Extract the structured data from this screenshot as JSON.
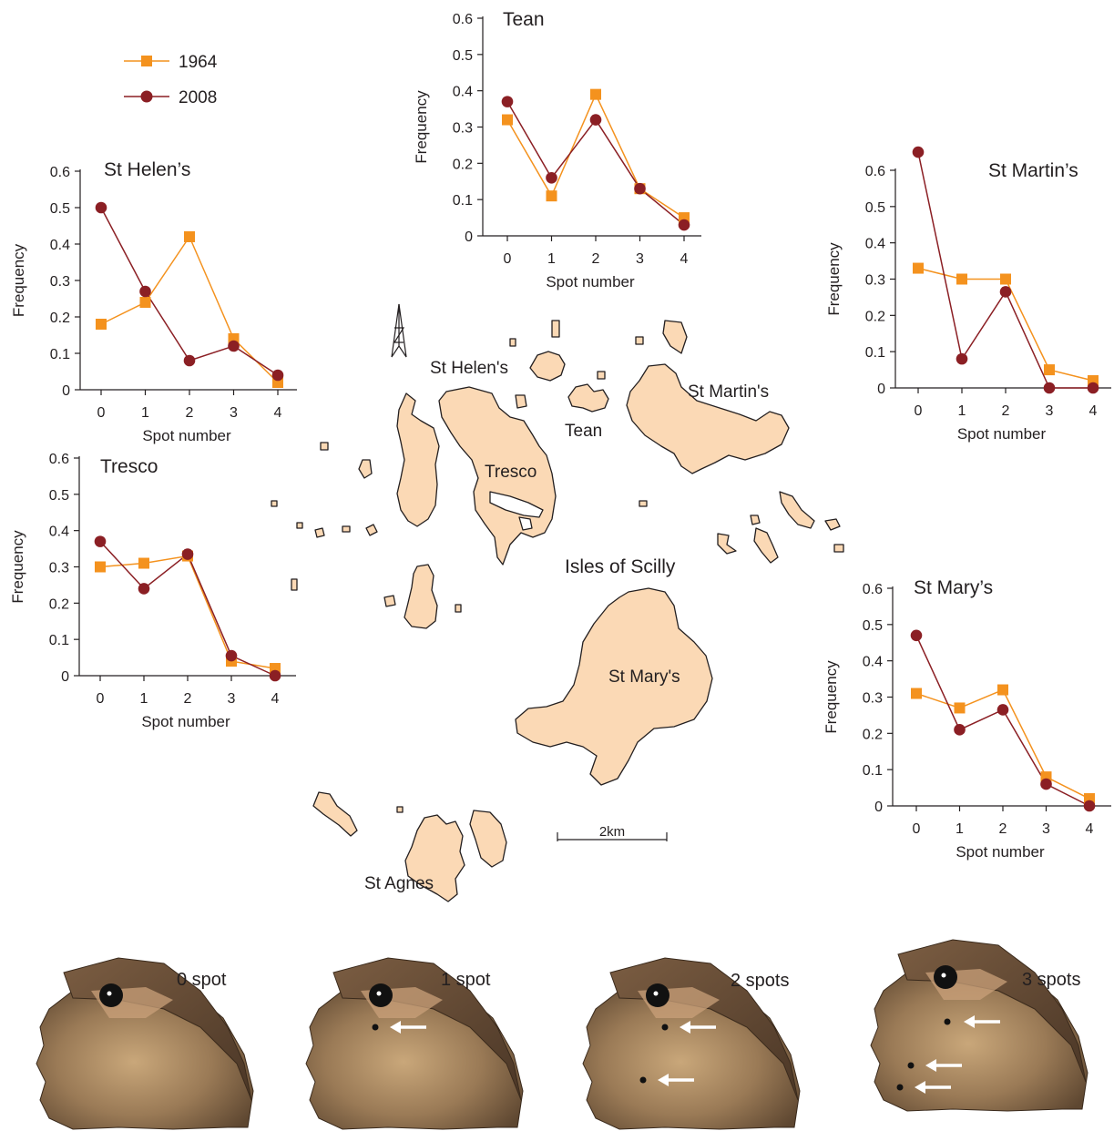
{
  "colors": {
    "series_1964": "#f4921e",
    "series_2008": "#8b1f24",
    "land": "#fbd9b5",
    "coast": "#231f20",
    "axis": "#231f20"
  },
  "legend": {
    "entries": [
      {
        "label": "1964",
        "marker": "square",
        "color": "#f4921e"
      },
      {
        "label": "2008",
        "marker": "circle",
        "color": "#8b1f24"
      }
    ]
  },
  "map": {
    "labels": {
      "st_helens": "St Helen's",
      "st_martins": "St Martin's",
      "tean": "Tean",
      "tresco": "Tresco",
      "isles": "Isles of Scilly",
      "st_marys": "St Mary's",
      "st_agnes": "St Agnes"
    },
    "scale_label": "2km",
    "north_arrow_icon": "north-arrow-icon"
  },
  "specimens": [
    {
      "label": "0 spot",
      "spots": 0
    },
    {
      "label": "1 spot",
      "spots": 1
    },
    {
      "label": "2 spots",
      "spots": 2
    },
    {
      "label": "3 spots",
      "spots": 3
    }
  ],
  "chart_data": [
    {
      "type": "line",
      "title": "Tean",
      "xlabel": "Spot number",
      "ylabel": "Frequency",
      "x": [
        0,
        1,
        2,
        3,
        4
      ],
      "ylim": [
        0,
        0.6
      ],
      "yticks": [
        "0",
        "0.1",
        "0.2",
        "0.3",
        "0.4",
        "0.5",
        "0.6"
      ],
      "xticks": [
        "0",
        "1",
        "2",
        "3",
        "4"
      ],
      "grid": false,
      "series": [
        {
          "name": "1964",
          "values": [
            0.32,
            0.11,
            0.39,
            0.13,
            0.05
          ]
        },
        {
          "name": "2008",
          "values": [
            0.37,
            0.16,
            0.32,
            0.13,
            0.03
          ]
        }
      ]
    },
    {
      "type": "line",
      "title": "St Helen’s",
      "xlabel": "Spot number",
      "ylabel": "Frequency",
      "x": [
        0,
        1,
        2,
        3,
        4
      ],
      "ylim": [
        0,
        0.6
      ],
      "yticks": [
        "0",
        "0.1",
        "0.2",
        "0.3",
        "0.4",
        "0.5",
        "0.6"
      ],
      "xticks": [
        "0",
        "1",
        "2",
        "3",
        "4"
      ],
      "grid": false,
      "series": [
        {
          "name": "1964",
          "values": [
            0.18,
            0.24,
            0.42,
            0.14,
            0.02
          ]
        },
        {
          "name": "2008",
          "values": [
            0.5,
            0.27,
            0.08,
            0.12,
            0.04
          ]
        }
      ]
    },
    {
      "type": "line",
      "title": "St Martin’s",
      "xlabel": "Spot number",
      "ylabel": "Frequency",
      "x": [
        0,
        1,
        2,
        3,
        4
      ],
      "ylim": [
        0,
        0.6
      ],
      "yticks": [
        "0",
        "0.1",
        "0.2",
        "0.3",
        "0.4",
        "0.5",
        "0.6"
      ],
      "xticks": [
        "0",
        "1",
        "2",
        "3",
        "4"
      ],
      "grid": false,
      "series": [
        {
          "name": "1964",
          "values": [
            0.33,
            0.3,
            0.3,
            0.05,
            0.02
          ]
        },
        {
          "name": "2008",
          "values": [
            0.65,
            0.08,
            0.265,
            0.0,
            0.0
          ]
        }
      ]
    },
    {
      "type": "line",
      "title": "Tresco",
      "xlabel": "Spot number",
      "ylabel": "Frequency",
      "x": [
        0,
        1,
        2,
        3,
        4
      ],
      "ylim": [
        0,
        0.6
      ],
      "yticks": [
        "0",
        "0.1",
        "0.2",
        "0.3",
        "0.4",
        "0.5",
        "0.6"
      ],
      "xticks": [
        "0",
        "1",
        "2",
        "3",
        "4"
      ],
      "grid": false,
      "series": [
        {
          "name": "1964",
          "values": [
            0.3,
            0.31,
            0.33,
            0.04,
            0.02
          ]
        },
        {
          "name": "2008",
          "values": [
            0.37,
            0.24,
            0.335,
            0.055,
            0.0
          ]
        }
      ]
    },
    {
      "type": "line",
      "title": "St Mary’s",
      "xlabel": "Spot number",
      "ylabel": "Frequency",
      "x": [
        0,
        1,
        2,
        3,
        4
      ],
      "ylim": [
        0,
        0.6
      ],
      "yticks": [
        "0",
        "0.1",
        "0.2",
        "0.3",
        "0.4",
        "0.5",
        "0.6"
      ],
      "xticks": [
        "0",
        "1",
        "2",
        "3",
        "4"
      ],
      "grid": false,
      "series": [
        {
          "name": "1964",
          "values": [
            0.31,
            0.27,
            0.32,
            0.08,
            0.02
          ]
        },
        {
          "name": "2008",
          "values": [
            0.47,
            0.21,
            0.265,
            0.06,
            0.0
          ]
        }
      ]
    }
  ]
}
